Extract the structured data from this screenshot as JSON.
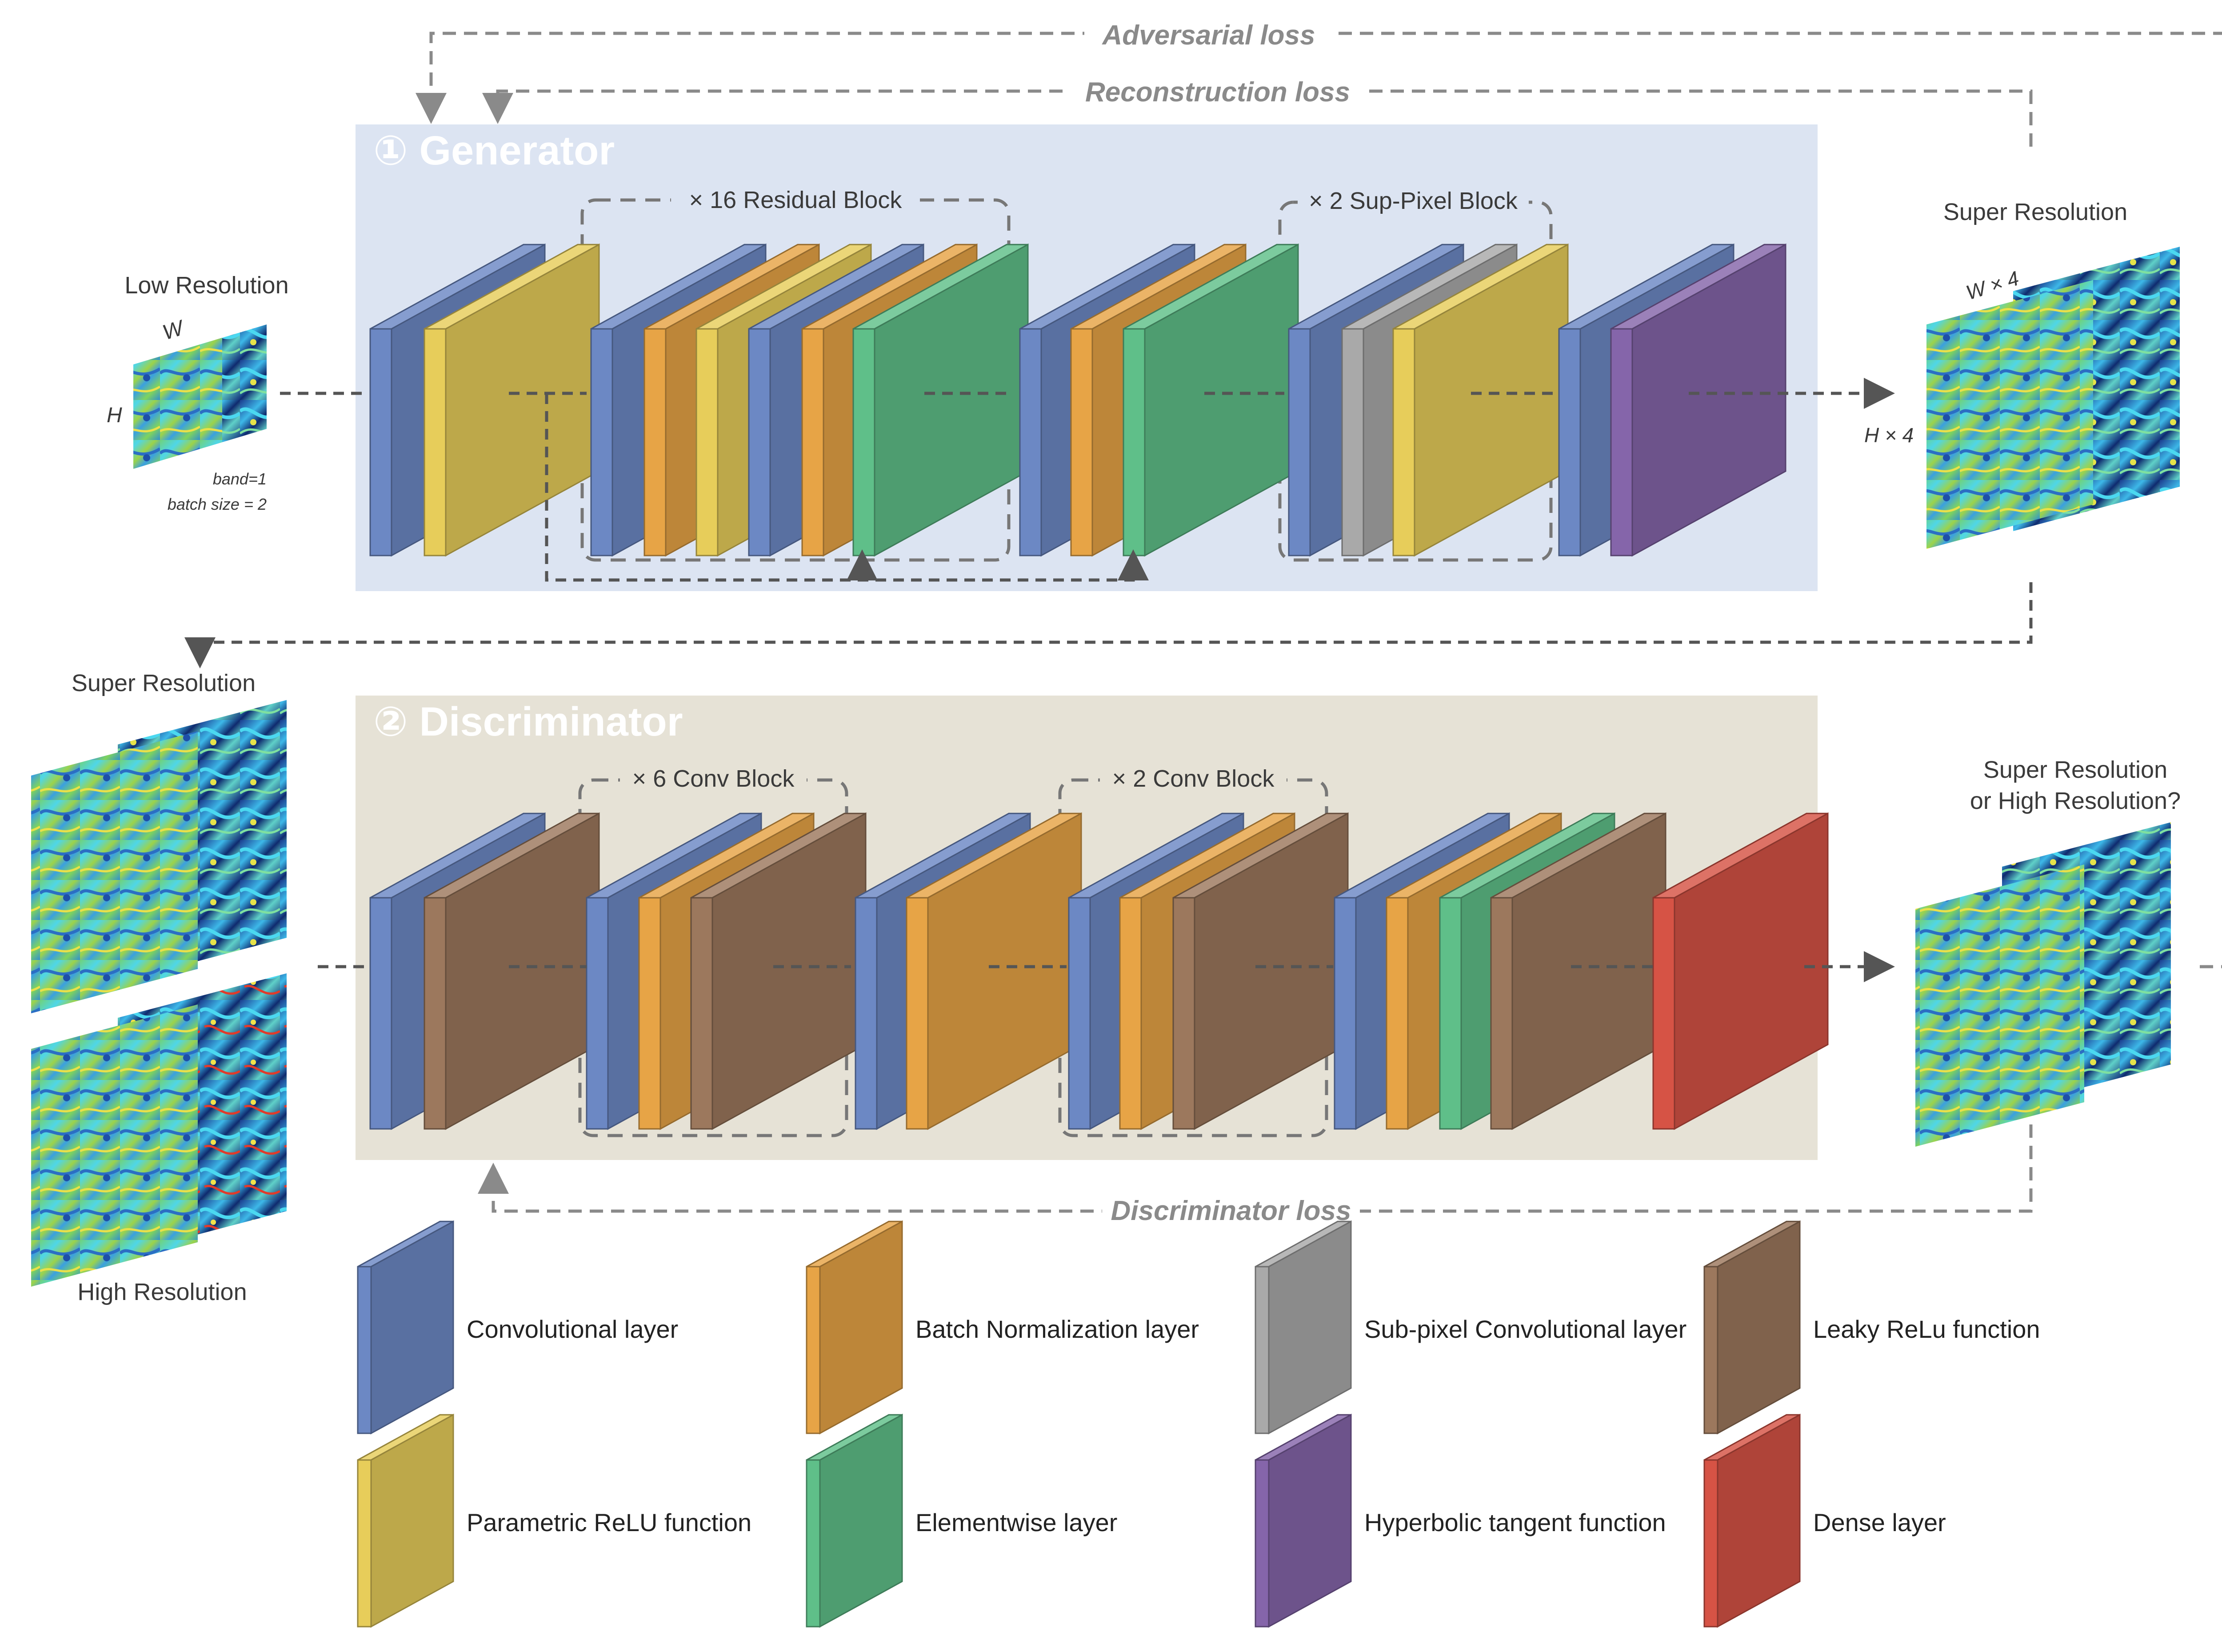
{
  "colors": {
    "conv": "#6c88c4",
    "prelu": "#e7cd5a",
    "bn": "#e7a446",
    "elementwise": "#5fbf89",
    "subpixel": "#a9a9a9",
    "tanh": "#8565aa",
    "leaky": "#9c785d",
    "dense": "#d65345",
    "generator_bg": "#dce4f2",
    "discriminator_bg": "#e6e2d6"
  },
  "losses": {
    "adversarial": "Adversarial loss",
    "reconstruction": "Reconstruction  loss",
    "discriminator": "Discriminator loss"
  },
  "generator": {
    "title": "① Generator",
    "residual_block": "× 16 Residual Block",
    "subpixel_block": "× 2 Sup-Pixel Block"
  },
  "discriminator": {
    "title": "② Discriminator",
    "conv_block_6": "× 6 Conv Block",
    "conv_block_2": "× 2 Conv Block"
  },
  "inputs": {
    "low_res": "Low Resolution",
    "w": "W",
    "h": "H",
    "band": "band=1",
    "batch": "batch size = 2",
    "super_res_out": "Super Resolution",
    "w4": "W × 4",
    "h4": "H × 4",
    "super_res_left": "Super Resolution",
    "high_res_left": "High Resolution",
    "question_l1": "Super Resolution",
    "question_l2": "or High Resolution?"
  },
  "legend": [
    {
      "key": "conv",
      "label": "Convolutional layer"
    },
    {
      "key": "bn",
      "label": "Batch Normalization layer"
    },
    {
      "key": "subpixel",
      "label": "Sub-pixel Convolutional layer"
    },
    {
      "key": "leaky",
      "label": "Leaky ReLu function"
    },
    {
      "key": "prelu",
      "label": "Parametric ReLU function"
    },
    {
      "key": "elementwise",
      "label": "Elementwise layer"
    },
    {
      "key": "tanh",
      "label": "Hyperbolic tangent function"
    },
    {
      "key": "dense",
      "label": "Dense layer"
    }
  ]
}
